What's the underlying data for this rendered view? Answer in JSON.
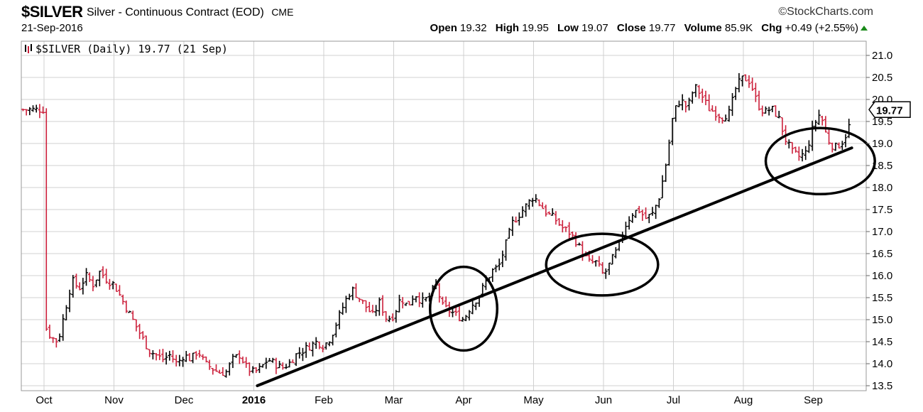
{
  "header": {
    "symbol": "$SILVER",
    "description": "Silver - Continuous Contract (EOD)",
    "exchange": "CME",
    "date": "21-Sep-2016",
    "brand": "©StockCharts.com",
    "open_label": "Open",
    "open": "19.32",
    "high_label": "High",
    "high": "19.95",
    "low_label": "Low",
    "low": "19.07",
    "close_label": "Close",
    "close": "19.77",
    "volume_label": "Volume",
    "volume": "85.9K",
    "chg_label": "Chg",
    "chg": "+0.49 (+2.55%)"
  },
  "chart_data": {
    "type": "line",
    "legend": "$SILVER (Daily) 19.77 (21 Sep)",
    "last_value_label": "19.77",
    "last_value": 19.77,
    "ylim": [
      13.5,
      21.2
    ],
    "yticks": [
      "13.5",
      "14.0",
      "14.5",
      "15.0",
      "15.5",
      "16.0",
      "16.5",
      "17.0",
      "17.5",
      "18.0",
      "18.5",
      "19.0",
      "19.5",
      "20.0",
      "20.5",
      "21.0"
    ],
    "months": [
      "Oct",
      "Nov",
      "Dec",
      "2016",
      "Feb",
      "Mar",
      "Apr",
      "May",
      "Jun",
      "Jul",
      "Aug",
      "Sep"
    ],
    "colors": {
      "up": "#000000",
      "down": "#cc1f3a",
      "grid": "#d0d0d0"
    },
    "series": [
      {
        "values": [
          {
            "m": 0.0,
            "v": 14.9
          },
          {
            "m": 0.1,
            "v": 14.6
          },
          {
            "m": 0.2,
            "v": 14.5
          },
          {
            "m": 0.3,
            "v": 15.2
          },
          {
            "m": 0.4,
            "v": 15.9
          },
          {
            "m": 0.5,
            "v": 15.7
          },
          {
            "m": 0.6,
            "v": 16.0
          },
          {
            "m": 0.7,
            "v": 15.8
          },
          {
            "m": 0.8,
            "v": 16.1
          },
          {
            "m": 0.9,
            "v": 15.9
          },
          {
            "m": 1.0,
            "v": 15.8
          },
          {
            "m": 1.1,
            "v": 15.5
          },
          {
            "m": 1.2,
            "v": 15.2
          },
          {
            "m": 1.3,
            "v": 14.9
          },
          {
            "m": 1.4,
            "v": 14.6
          },
          {
            "m": 1.5,
            "v": 14.3
          },
          {
            "m": 1.6,
            "v": 14.2
          },
          {
            "m": 1.7,
            "v": 14.1
          },
          {
            "m": 1.8,
            "v": 14.2
          },
          {
            "m": 1.9,
            "v": 14.0
          },
          {
            "m": 2.0,
            "v": 14.2
          },
          {
            "m": 2.1,
            "v": 14.1
          },
          {
            "m": 2.2,
            "v": 14.3
          },
          {
            "m": 2.3,
            "v": 14.0
          },
          {
            "m": 2.4,
            "v": 13.9
          },
          {
            "m": 2.5,
            "v": 13.8
          },
          {
            "m": 2.6,
            "v": 13.8
          },
          {
            "m": 2.7,
            "v": 14.1
          },
          {
            "m": 2.8,
            "v": 14.2
          },
          {
            "m": 2.9,
            "v": 13.9
          },
          {
            "m": 3.0,
            "v": 13.8
          },
          {
            "m": 3.1,
            "v": 13.9
          },
          {
            "m": 3.2,
            "v": 14.1
          },
          {
            "m": 3.3,
            "v": 14.0
          },
          {
            "m": 3.4,
            "v": 13.9
          },
          {
            "m": 3.5,
            "v": 14.0
          },
          {
            "m": 3.6,
            "v": 14.2
          },
          {
            "m": 3.7,
            "v": 14.3
          },
          {
            "m": 3.8,
            "v": 14.4
          },
          {
            "m": 3.9,
            "v": 14.5
          },
          {
            "m": 4.0,
            "v": 14.4
          },
          {
            "m": 4.1,
            "v": 14.6
          },
          {
            "m": 4.2,
            "v": 15.0
          },
          {
            "m": 4.3,
            "v": 15.4
          },
          {
            "m": 4.4,
            "v": 15.7
          },
          {
            "m": 4.5,
            "v": 15.5
          },
          {
            "m": 4.6,
            "v": 15.3
          },
          {
            "m": 4.7,
            "v": 15.1
          },
          {
            "m": 4.8,
            "v": 15.4
          },
          {
            "m": 4.9,
            "v": 15.0
          },
          {
            "m": 5.0,
            "v": 15.1
          },
          {
            "m": 5.1,
            "v": 15.5
          },
          {
            "m": 5.2,
            "v": 15.3
          },
          {
            "m": 5.3,
            "v": 15.6
          },
          {
            "m": 5.4,
            "v": 15.4
          },
          {
            "m": 5.5,
            "v": 15.5
          },
          {
            "m": 5.6,
            "v": 15.8
          },
          {
            "m": 5.7,
            "v": 15.3
          },
          {
            "m": 5.8,
            "v": 15.2
          },
          {
            "m": 5.9,
            "v": 15.1
          },
          {
            "m": 6.0,
            "v": 15.0
          },
          {
            "m": 6.1,
            "v": 15.3
          },
          {
            "m": 6.2,
            "v": 15.5
          },
          {
            "m": 6.3,
            "v": 15.8
          },
          {
            "m": 6.4,
            "v": 16.1
          },
          {
            "m": 6.5,
            "v": 16.2
          },
          {
            "m": 6.6,
            "v": 16.7
          },
          {
            "m": 6.7,
            "v": 17.2
          },
          {
            "m": 6.8,
            "v": 17.4
          },
          {
            "m": 6.9,
            "v": 17.6
          },
          {
            "m": 7.0,
            "v": 17.8
          },
          {
            "m": 7.1,
            "v": 17.6
          },
          {
            "m": 7.2,
            "v": 17.4
          },
          {
            "m": 7.3,
            "v": 17.3
          },
          {
            "m": 7.4,
            "v": 17.1
          },
          {
            "m": 7.5,
            "v": 17.0
          },
          {
            "m": 7.6,
            "v": 16.8
          },
          {
            "m": 7.7,
            "v": 16.5
          },
          {
            "m": 7.8,
            "v": 16.3
          },
          {
            "m": 7.9,
            "v": 16.3
          },
          {
            "m": 8.0,
            "v": 16.0
          },
          {
            "m": 8.1,
            "v": 16.3
          },
          {
            "m": 8.2,
            "v": 16.6
          },
          {
            "m": 8.3,
            "v": 17.1
          },
          {
            "m": 8.4,
            "v": 17.4
          },
          {
            "m": 8.5,
            "v": 17.5
          },
          {
            "m": 8.6,
            "v": 17.3
          },
          {
            "m": 8.7,
            "v": 17.4
          },
          {
            "m": 8.8,
            "v": 17.8
          },
          {
            "m": 8.9,
            "v": 18.6
          },
          {
            "m": 9.0,
            "v": 19.7
          },
          {
            "m": 9.1,
            "v": 20.0
          },
          {
            "m": 9.2,
            "v": 19.8
          },
          {
            "m": 9.3,
            "v": 20.3
          },
          {
            "m": 9.4,
            "v": 20.1
          },
          {
            "m": 9.5,
            "v": 19.8
          },
          {
            "m": 9.6,
            "v": 19.7
          },
          {
            "m": 9.7,
            "v": 19.6
          },
          {
            "m": 9.8,
            "v": 19.7
          },
          {
            "m": 9.9,
            "v": 20.3
          },
          {
            "m": 10.0,
            "v": 20.5
          },
          {
            "m": 10.1,
            "v": 20.4
          },
          {
            "m": 10.2,
            "v": 19.9
          },
          {
            "m": 10.3,
            "v": 19.7
          },
          {
            "m": 10.4,
            "v": 19.8
          },
          {
            "m": 10.5,
            "v": 19.6
          },
          {
            "m": 10.6,
            "v": 19.1
          },
          {
            "m": 10.7,
            "v": 18.8
          },
          {
            "m": 10.8,
            "v": 18.7
          },
          {
            "m": 10.9,
            "v": 18.8
          },
          {
            "m": 11.0,
            "v": 19.4
          },
          {
            "m": 11.1,
            "v": 19.7
          },
          {
            "m": 11.2,
            "v": 19.1
          },
          {
            "m": 11.3,
            "v": 18.9
          },
          {
            "m": 11.4,
            "v": 19.0
          },
          {
            "m": 11.5,
            "v": 19.3
          },
          {
            "m": 11.55,
            "v": 19.77
          }
        ]
      }
    ],
    "annotations": {
      "trendline": [
        {
          "m": 3.05,
          "v": 13.5
        },
        {
          "m": 11.55,
          "v": 18.9
        }
      ],
      "ellipses": [
        {
          "m_center": 6.0,
          "v_center": 15.25,
          "m_radius": 0.48,
          "v_radius": 0.95
        },
        {
          "m_center": 7.98,
          "v_center": 16.25,
          "m_radius": 0.8,
          "v_radius": 0.7
        },
        {
          "m_center": 11.1,
          "v_center": 18.6,
          "m_radius": 0.78,
          "v_radius": 0.75
        }
      ]
    }
  }
}
